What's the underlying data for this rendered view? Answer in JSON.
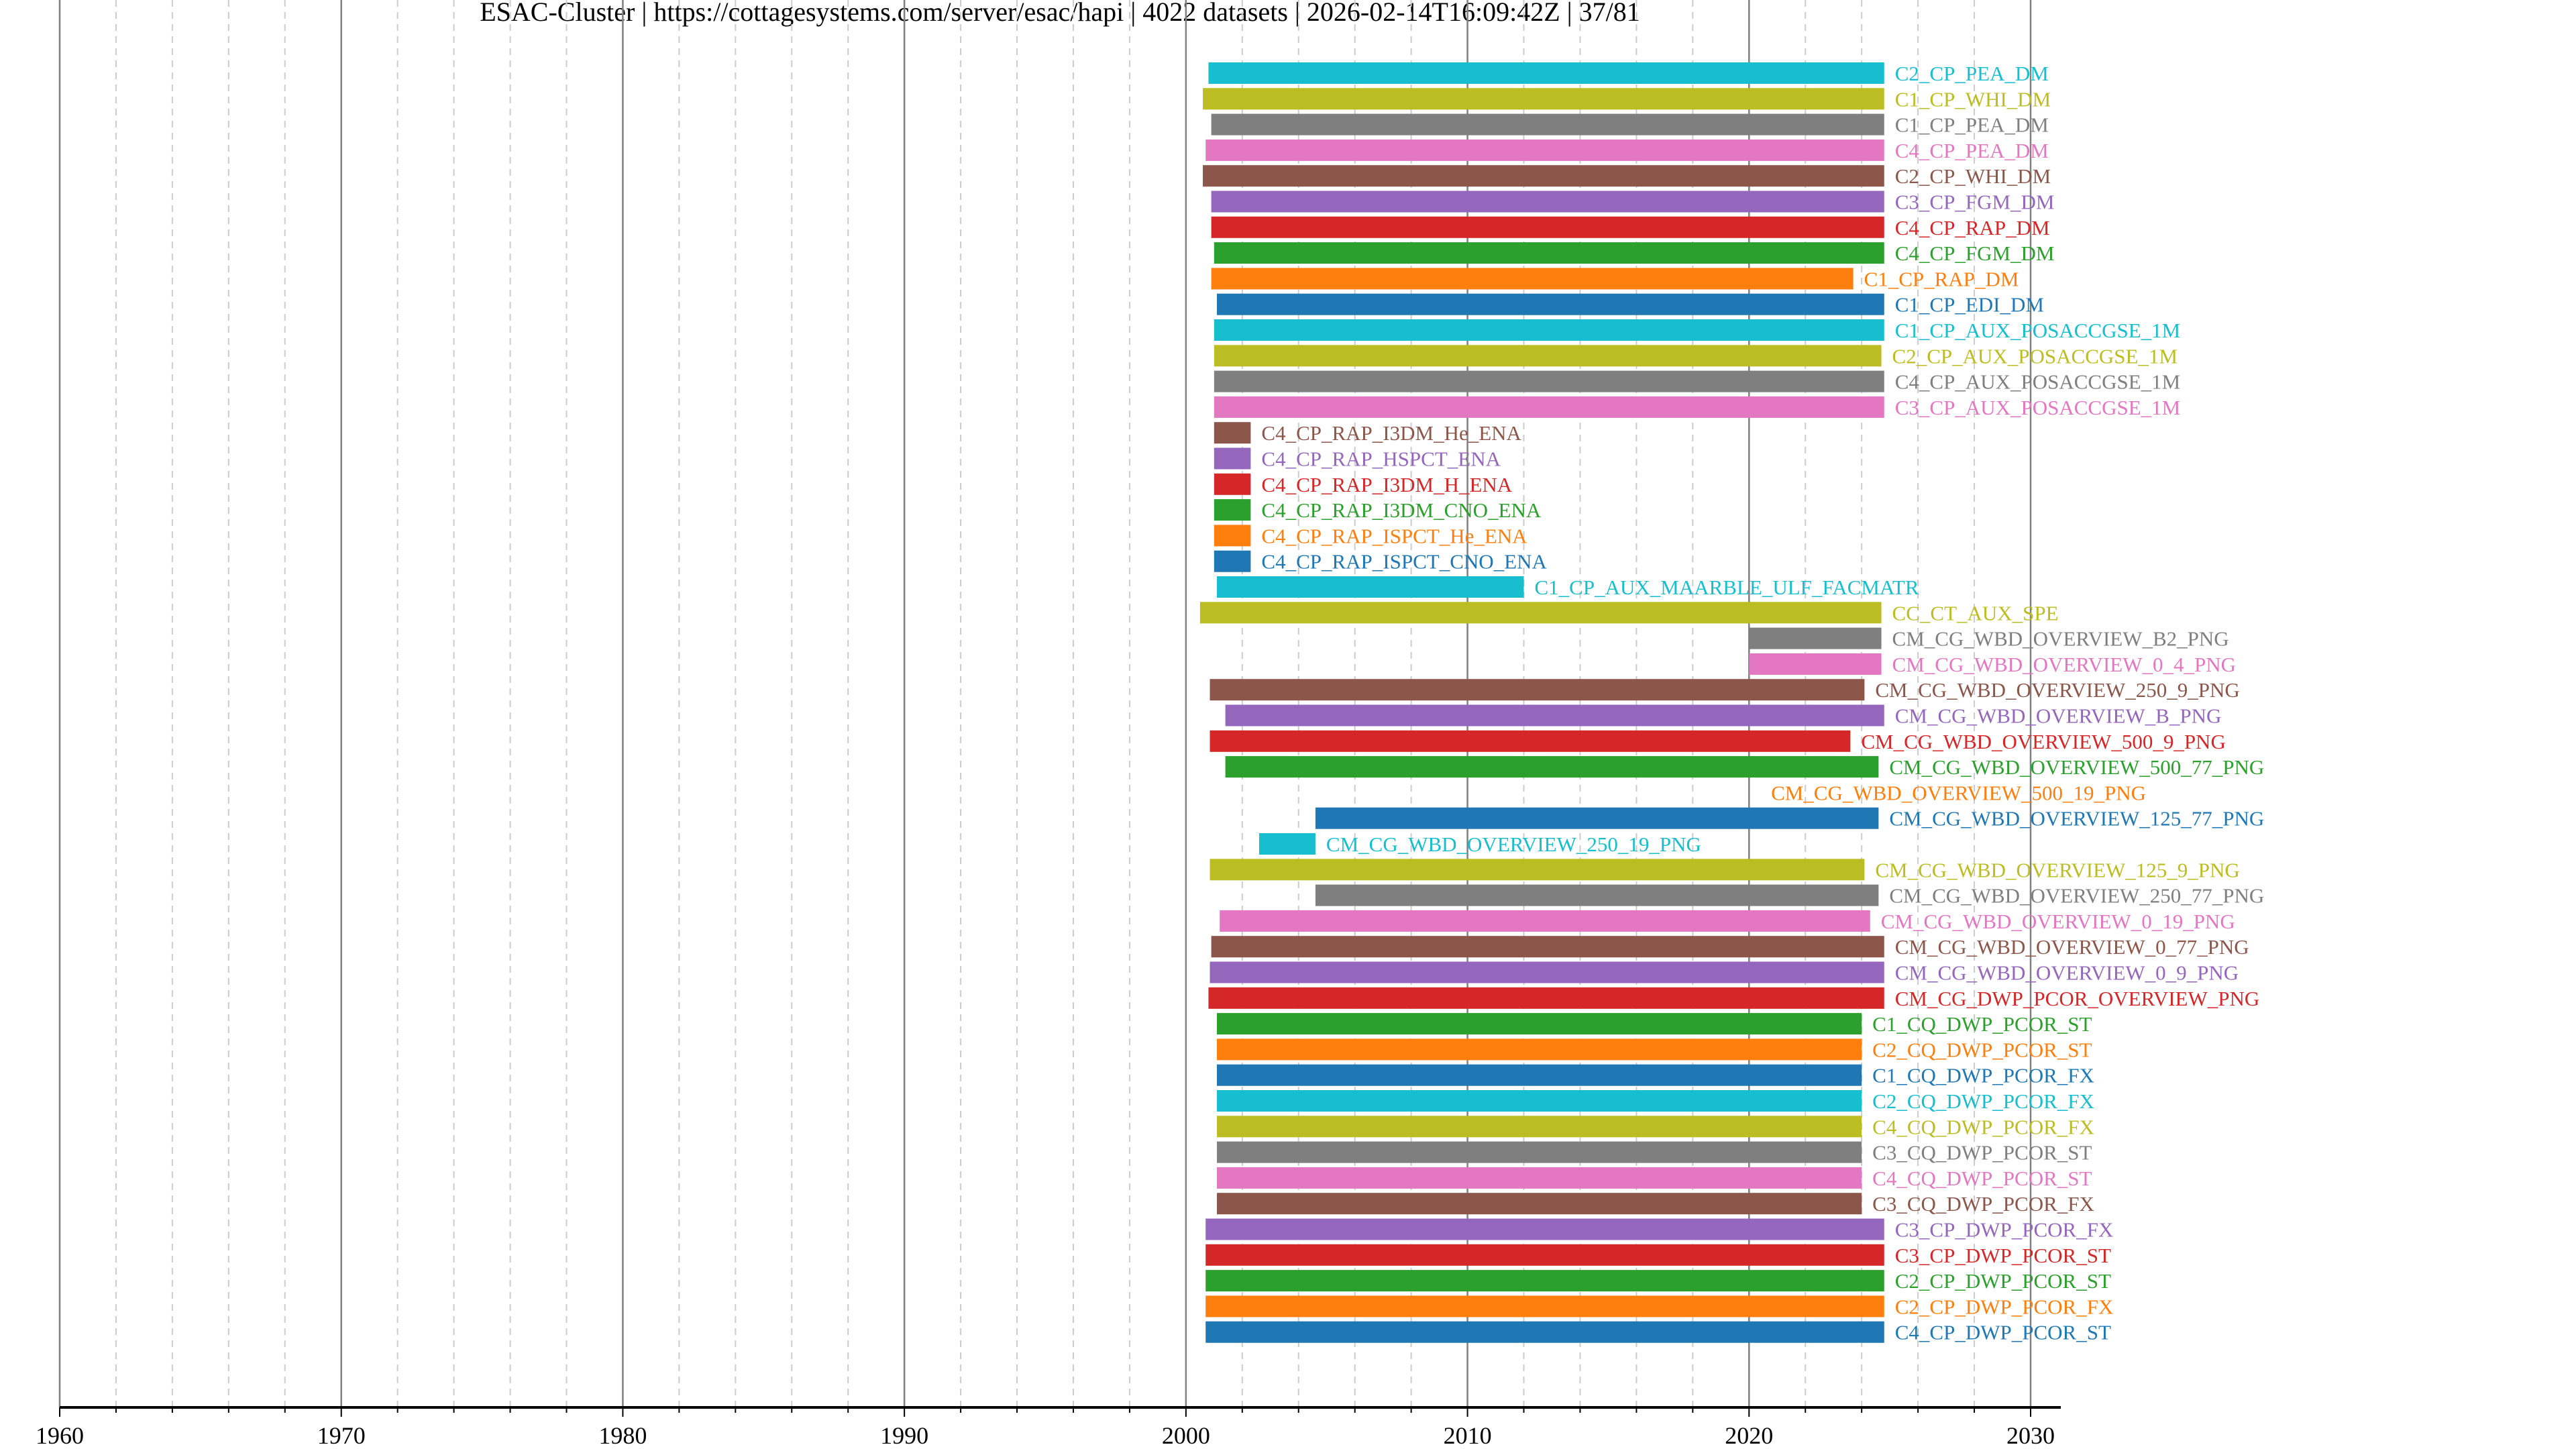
{
  "title": "ESAC-Cluster | https://cottagesystems.com/server/esac/hapi | 4022 datasets | 2026-02-14T16:09:42Z | 37/81",
  "chart_data": {
    "type": "bar",
    "orientation": "horizontal-timeline",
    "title": "ESAC-Cluster | https://cottagesystems.com/server/esac/hapi | 4022 datasets | 2026-02-14T16:09:42Z | 37/81",
    "xlabel": "",
    "ylabel": "",
    "xlim": [
      1960,
      2031.1
    ],
    "xticks": [
      "1960",
      "1970",
      "1980",
      "1990",
      "2000",
      "2010",
      "2020",
      "2030"
    ],
    "grid": "vertical major (10 yr) solid, minor (2 yr) dashed",
    "colors": {
      "blue": "#1f77b4",
      "orange": "#ff7f0e",
      "green": "#2ca02c",
      "red": "#d62728",
      "purple": "#9467bd",
      "brown": "#8c564b",
      "pink": "#e377c2",
      "gray": "#7f7f7f",
      "olive": "#bcbd22",
      "cyan": "#17becf"
    },
    "series": [
      {
        "name": "C2_CP_PEA_DM",
        "start": 2000.8,
        "end": 2024.8,
        "color": "#17becf"
      },
      {
        "name": "C1_CP_WHI_DM",
        "start": 2000.6,
        "end": 2024.8,
        "color": "#bcbd22"
      },
      {
        "name": "C1_CP_PEA_DM",
        "start": 2000.9,
        "end": 2024.8,
        "color": "#7f7f7f"
      },
      {
        "name": "C4_CP_PEA_DM",
        "start": 2000.7,
        "end": 2024.8,
        "color": "#e377c2"
      },
      {
        "name": "C2_CP_WHI_DM",
        "start": 2000.6,
        "end": 2024.8,
        "color": "#8c564b"
      },
      {
        "name": "C3_CP_FGM_DM",
        "start": 2000.9,
        "end": 2024.8,
        "color": "#9467bd"
      },
      {
        "name": "C4_CP_RAP_DM",
        "start": 2000.9,
        "end": 2024.8,
        "color": "#d62728"
      },
      {
        "name": "C4_CP_FGM_DM",
        "start": 2001.0,
        "end": 2024.8,
        "color": "#2ca02c"
      },
      {
        "name": "C1_CP_RAP_DM",
        "start": 2000.9,
        "end": 2023.7,
        "color": "#ff7f0e"
      },
      {
        "name": "C1_CP_EDI_DM",
        "start": 2001.1,
        "end": 2024.8,
        "color": "#1f77b4"
      },
      {
        "name": "C1_CP_AUX_POSACCGSE_1M",
        "start": 2001.0,
        "end": 2024.8,
        "color": "#17becf"
      },
      {
        "name": "C2_CP_AUX_POSACCGSE_1M",
        "start": 2001.0,
        "end": 2024.7,
        "color": "#bcbd22"
      },
      {
        "name": "C4_CP_AUX_POSACCGSE_1M",
        "start": 2001.0,
        "end": 2024.8,
        "color": "#7f7f7f"
      },
      {
        "name": "C3_CP_AUX_POSACCGSE_1M",
        "start": 2001.0,
        "end": 2024.8,
        "color": "#e377c2"
      },
      {
        "name": "C4_CP_RAP_I3DM_He_ENA",
        "start": 2001.0,
        "end": 2002.3,
        "color": "#8c564b"
      },
      {
        "name": "C4_CP_RAP_HSPCT_ENA",
        "start": 2001.0,
        "end": 2002.3,
        "color": "#9467bd"
      },
      {
        "name": "C4_CP_RAP_I3DM_H_ENA",
        "start": 2001.0,
        "end": 2002.3,
        "color": "#d62728"
      },
      {
        "name": "C4_CP_RAP_I3DM_CNO_ENA",
        "start": 2001.0,
        "end": 2002.3,
        "color": "#2ca02c"
      },
      {
        "name": "C4_CP_RAP_ISPCT_He_ENA",
        "start": 2001.0,
        "end": 2002.3,
        "color": "#ff7f0e"
      },
      {
        "name": "C4_CP_RAP_ISPCT_CNO_ENA",
        "start": 2001.0,
        "end": 2002.3,
        "color": "#1f77b4"
      },
      {
        "name": "C1_CP_AUX_MAARBLE_ULF_FACMATR",
        "start": 2001.1,
        "end": 2012.0,
        "color": "#17becf"
      },
      {
        "name": "CC_CT_AUX_SPE",
        "start": 2000.5,
        "end": 2024.7,
        "color": "#bcbd22"
      },
      {
        "name": "CM_CG_WBD_OVERVIEW_B2_PNG",
        "start": 2020.0,
        "end": 2024.7,
        "color": "#7f7f7f"
      },
      {
        "name": "CM_CG_WBD_OVERVIEW_0_4_PNG",
        "start": 2020.0,
        "end": 2024.7,
        "color": "#e377c2"
      },
      {
        "name": "CM_CG_WBD_OVERVIEW_250_9_PNG",
        "start": 2000.85,
        "end": 2024.1,
        "color": "#8c564b"
      },
      {
        "name": "CM_CG_WBD_OVERVIEW_B_PNG",
        "start": 2001.4,
        "end": 2024.8,
        "color": "#9467bd"
      },
      {
        "name": "CM_CG_WBD_OVERVIEW_500_9_PNG",
        "start": 2000.85,
        "end": 2023.6,
        "color": "#d62728"
      },
      {
        "name": "CM_CG_WBD_OVERVIEW_500_77_PNG",
        "start": 2001.4,
        "end": 2024.6,
        "color": "#2ca02c"
      },
      {
        "name": "CM_CG_WBD_OVERVIEW_500_19_PNG",
        "start": 2020.4,
        "end": 2020.4,
        "color": "#ff7f0e"
      },
      {
        "name": "CM_CG_WBD_OVERVIEW_125_77_PNG",
        "start": 2004.6,
        "end": 2024.6,
        "color": "#1f77b4"
      },
      {
        "name": "CM_CG_WBD_OVERVIEW_250_19_PNG",
        "start": 2002.6,
        "end": 2004.6,
        "color": "#17becf"
      },
      {
        "name": "CM_CG_WBD_OVERVIEW_125_9_PNG",
        "start": 2000.85,
        "end": 2024.1,
        "color": "#bcbd22"
      },
      {
        "name": "CM_CG_WBD_OVERVIEW_250_77_PNG",
        "start": 2004.6,
        "end": 2024.6,
        "color": "#7f7f7f"
      },
      {
        "name": "CM_CG_WBD_OVERVIEW_0_19_PNG",
        "start": 2001.2,
        "end": 2024.3,
        "color": "#e377c2"
      },
      {
        "name": "CM_CG_WBD_OVERVIEW_0_77_PNG",
        "start": 2000.9,
        "end": 2024.8,
        "color": "#8c564b"
      },
      {
        "name": "CM_CG_WBD_OVERVIEW_0_9_PNG",
        "start": 2000.85,
        "end": 2024.8,
        "color": "#9467bd"
      },
      {
        "name": "CM_CG_DWP_PCOR_OVERVIEW_PNG",
        "start": 2000.8,
        "end": 2024.8,
        "color": "#d62728"
      },
      {
        "name": "C1_CQ_DWP_PCOR_ST",
        "start": 2001.1,
        "end": 2024.0,
        "color": "#2ca02c"
      },
      {
        "name": "C2_CQ_DWP_PCOR_ST",
        "start": 2001.1,
        "end": 2024.0,
        "color": "#ff7f0e"
      },
      {
        "name": "C1_CQ_DWP_PCOR_FX",
        "start": 2001.1,
        "end": 2024.0,
        "color": "#1f77b4"
      },
      {
        "name": "C2_CQ_DWP_PCOR_FX",
        "start": 2001.1,
        "end": 2024.0,
        "color": "#17becf"
      },
      {
        "name": "C4_CQ_DWP_PCOR_FX",
        "start": 2001.1,
        "end": 2024.0,
        "color": "#bcbd22"
      },
      {
        "name": "C3_CQ_DWP_PCOR_ST",
        "start": 2001.1,
        "end": 2024.0,
        "color": "#7f7f7f"
      },
      {
        "name": "C4_CQ_DWP_PCOR_ST",
        "start": 2001.1,
        "end": 2024.0,
        "color": "#e377c2"
      },
      {
        "name": "C3_CQ_DWP_PCOR_FX",
        "start": 2001.1,
        "end": 2024.0,
        "color": "#8c564b"
      },
      {
        "name": "C3_CP_DWP_PCOR_FX",
        "start": 2000.7,
        "end": 2024.8,
        "color": "#9467bd"
      },
      {
        "name": "C3_CP_DWP_PCOR_ST",
        "start": 2000.7,
        "end": 2024.8,
        "color": "#d62728"
      },
      {
        "name": "C2_CP_DWP_PCOR_ST",
        "start": 2000.7,
        "end": 2024.8,
        "color": "#2ca02c"
      },
      {
        "name": "C2_CP_DWP_PCOR_FX",
        "start": 2000.7,
        "end": 2024.8,
        "color": "#ff7f0e"
      },
      {
        "name": "C4_CP_DWP_PCOR_ST",
        "start": 2000.7,
        "end": 2024.8,
        "color": "#1f77b4"
      }
    ]
  }
}
